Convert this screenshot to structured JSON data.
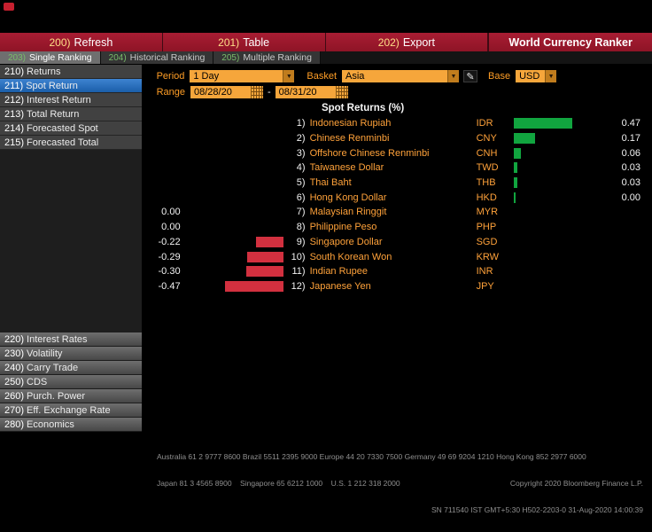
{
  "topbar": {
    "panel_icon": "bloomberg-panel-icon"
  },
  "menubar": {
    "items": [
      {
        "num": "200)",
        "label": "Refresh"
      },
      {
        "num": "201)",
        "label": "Table"
      },
      {
        "num": "202)",
        "label": "Export"
      }
    ],
    "title": "World Currency Ranker"
  },
  "tabs": [
    {
      "num": "203)",
      "label": "Single Ranking",
      "active": true
    },
    {
      "num": "204)",
      "label": "Historical Ranking",
      "active": false
    },
    {
      "num": "205)",
      "label": "Multiple Ranking",
      "active": false
    }
  ],
  "sidebar": {
    "top_items": [
      {
        "num": "210)",
        "label": "Returns",
        "selected": false
      },
      {
        "num": "211)",
        "label": "Spot Return",
        "selected": true
      },
      {
        "num": "212)",
        "label": "Interest Return",
        "selected": false
      },
      {
        "num": "213)",
        "label": "Total Return",
        "selected": false
      },
      {
        "num": "214)",
        "label": "Forecasted Spot",
        "selected": false
      },
      {
        "num": "215)",
        "label": "Forecasted Total",
        "selected": false
      }
    ],
    "bottom_items": [
      {
        "num": "220)",
        "label": "Interest Rates"
      },
      {
        "num": "230)",
        "label": "Volatility"
      },
      {
        "num": "240)",
        "label": "Carry Trade"
      },
      {
        "num": "250)",
        "label": "CDS"
      },
      {
        "num": "260)",
        "label": "Purch. Power"
      },
      {
        "num": "270)",
        "label": "Eff. Exchange Rate"
      },
      {
        "num": "280)",
        "label": "Economics"
      }
    ]
  },
  "controls": {
    "period_label": "Period",
    "period_value": "1 Day",
    "basket_label": "Basket",
    "basket_value": "Asia",
    "base_label": "Base",
    "base_value": "USD",
    "range_label": "Range",
    "range_start": "08/28/20",
    "range_separator": "-",
    "range_end": "08/31/20"
  },
  "icons": {
    "dropdown_arrow": "▼",
    "pencil": "✎"
  },
  "colors": {
    "toolbar_red": "#9a1829",
    "amber_label": "#ff9e26",
    "amber_field": "#f6a63b",
    "selected_blue": "#2e6db4"
  },
  "chart_data": {
    "type": "bar",
    "orientation": "horizontal",
    "title": "Spot Returns (%)",
    "xlim": [
      -0.5,
      0.5
    ],
    "grid": false,
    "positive_color": "#11a53f",
    "negative_color": "#d2303f",
    "ranks": [
      "1)",
      "2)",
      "3)",
      "4)",
      "5)",
      "6)",
      "7)",
      "8)",
      "9)",
      "10)",
      "11)",
      "12)"
    ],
    "categories": [
      "Indonesian Rupiah",
      "Chinese Renminbi",
      "Offshore Chinese Renminbi",
      "Taiwanese Dollar",
      "Thai Baht",
      "Hong Kong Dollar",
      "Malaysian Ringgit",
      "Philippine Peso",
      "Singapore Dollar",
      "South Korean Won",
      "Indian Rupee",
      "Japanese Yen"
    ],
    "codes": [
      "IDR",
      "CNY",
      "CNH",
      "TWD",
      "THB",
      "HKD",
      "MYR",
      "PHP",
      "SGD",
      "KRW",
      "INR",
      "JPY"
    ],
    "values": [
      0.47,
      0.17,
      0.06,
      0.03,
      0.03,
      0.0,
      0.0,
      0.0,
      -0.22,
      -0.29,
      -0.3,
      -0.47
    ],
    "value_labels": [
      "0.47",
      "0.17",
      "0.06",
      "0.03",
      "0.03",
      "0.00",
      "0.00",
      "0.00",
      "-0.22",
      "-0.29",
      "-0.30",
      "-0.47"
    ],
    "label_side": [
      "right",
      "right",
      "right",
      "right",
      "right",
      "right",
      "left",
      "left",
      "left",
      "left",
      "left",
      "left"
    ]
  },
  "footer": {
    "line1": "Australia 61 2 9777 8600 Brazil 5511 2395 9000 Europe 44 20 7330 7500 Germany 49 69 9204 1210 Hong Kong 852 2977 6000",
    "line2": "Japan 81 3 4565 8900    Singapore 65 6212 1000    U.S. 1 212 318 2000",
    "copyright": "Copyright 2020 Bloomberg Finance L.P.",
    "terminal_info": "SN 711540 IST GMT+5:30 H502-2203-0 31-Aug-2020 14:00:39"
  }
}
